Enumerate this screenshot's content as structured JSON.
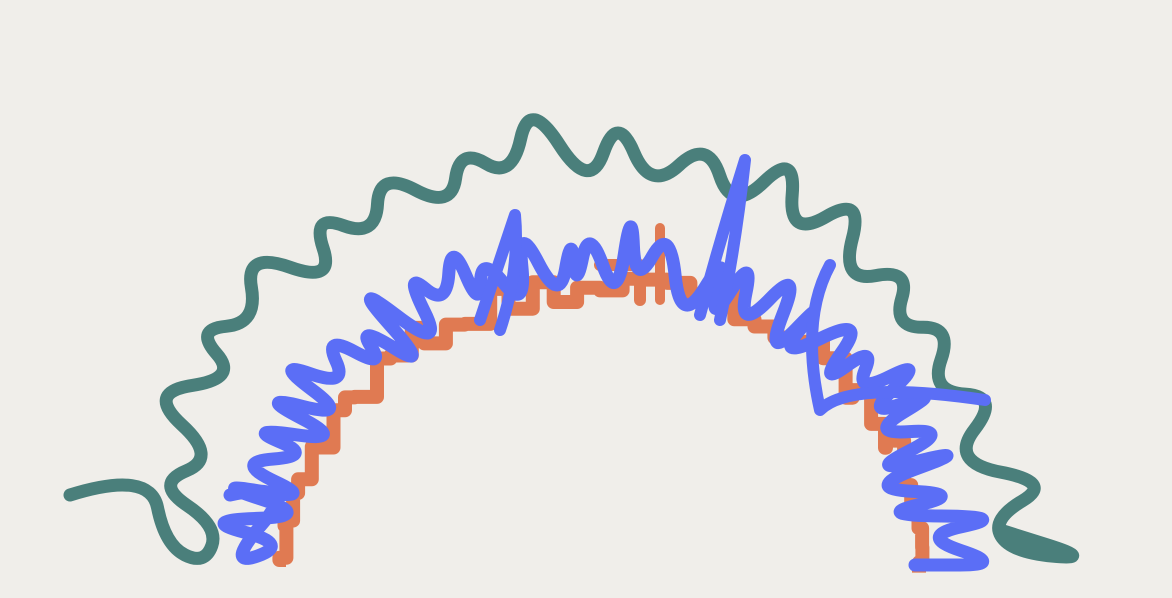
{
  "colors": {
    "background": "#f0eeea",
    "outer_squiggle": "#4a7f7b",
    "middle_squiggle": "#5b6ef6",
    "inner_staircase": "#e07a52"
  },
  "shapes": [
    {
      "name": "outer-teal-squiggle-arc",
      "color": "outer_squiggle"
    },
    {
      "name": "middle-blue-squiggle-arc",
      "color": "middle_squiggle"
    },
    {
      "name": "inner-orange-staircase-arc",
      "color": "inner_staircase"
    }
  ]
}
